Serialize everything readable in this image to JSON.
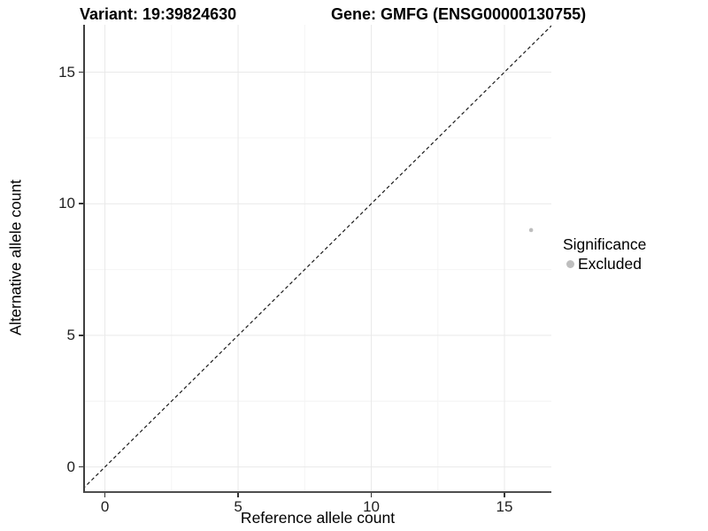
{
  "chart_data": {
    "type": "scatter",
    "title_left": "Variant: 19:39824630",
    "title_right": "Gene: GMFG (ENSG00000130755)",
    "xlabel": "Reference allele count",
    "ylabel": "Alternative allele count",
    "xlim": [
      -0.75,
      16.76
    ],
    "ylim": [
      -0.92,
      16.8
    ],
    "xticks": [
      0,
      5,
      10,
      15
    ],
    "yticks": [
      0,
      5,
      10,
      15
    ],
    "minor_xticks": [
      2.5,
      7.5,
      12.5
    ],
    "minor_yticks": [
      2.5,
      7.5,
      12.5
    ],
    "grid": "on",
    "identity_line": {
      "style": "dashed",
      "from": -1,
      "to": 17
    },
    "series": [
      {
        "name": "Excluded",
        "color": "#bebebe",
        "point_radius": 2.3,
        "points": [
          {
            "x": 16,
            "y": 9
          }
        ]
      }
    ],
    "legend": {
      "title": "Significance",
      "position": "right",
      "entries": [
        {
          "label": "Excluded",
          "color": "#bebebe"
        }
      ]
    }
  },
  "colors": {
    "grid_major": "#e9e9e9",
    "grid_minor": "#f4f4f4",
    "dashed_line": "#1a1a1a",
    "axis_line": "#3f3f3f",
    "point": "#bebebe"
  }
}
